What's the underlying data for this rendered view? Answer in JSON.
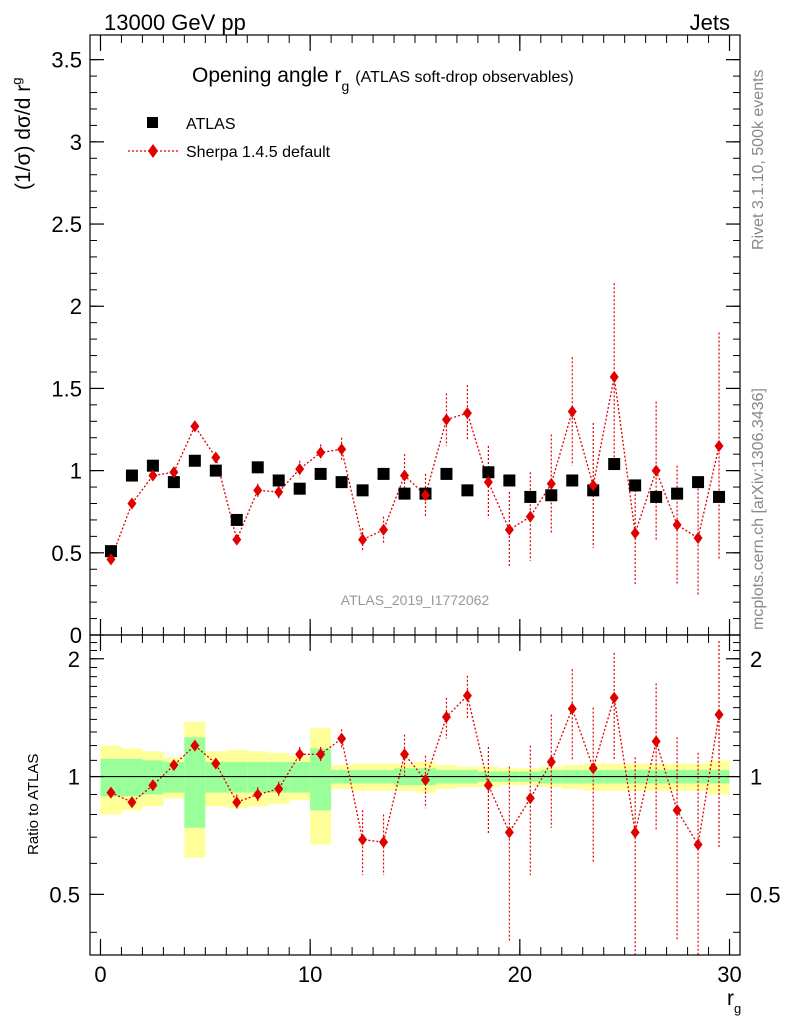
{
  "header": {
    "left": "13000 GeV pp",
    "right": "Jets"
  },
  "side_text": {
    "rivet": "Rivet 3.1.10,  500k events",
    "mcplots": "mcplots.cern.ch [arXiv:1306.3436]"
  },
  "watermark": "ATLAS_2019_I1772062",
  "chart_data": {
    "type": "scatter",
    "title": "Opening angle r",
    "title_sub": "g",
    "title_suffix": "(ATLAS soft-drop observables)",
    "ylabel": "(1/σ) dσ/d r",
    "ylabel_sub": "g",
    "ratio_ylabel": "Ratio to ATLAS",
    "xlabel": "r",
    "xlabel_sub": "g",
    "xlim": [
      -0.5,
      30.5
    ],
    "ylim": [
      0,
      3.65
    ],
    "ratio_ylim": [
      0.35,
      2.3
    ],
    "xticks": [
      "0",
      "10",
      "20",
      "30"
    ],
    "yticks": [
      "0",
      "0.5",
      "1",
      "1.5",
      "2",
      "2.5",
      "3",
      "3.5"
    ],
    "ratio_yticks": [
      "0.5",
      "1",
      "2"
    ],
    "legend_position": "top-left",
    "x": [
      0.5,
      1.5,
      2.5,
      3.5,
      4.5,
      5.5,
      6.5,
      7.5,
      8.5,
      9.5,
      10.5,
      11.5,
      12.5,
      13.5,
      14.5,
      15.5,
      16.5,
      17.5,
      18.5,
      19.5,
      20.5,
      21.5,
      22.5,
      23.5,
      24.5,
      25.5,
      26.5,
      27.5,
      28.5,
      29.5
    ],
    "series": [
      {
        "name": "ATLAS",
        "color": "#000000",
        "marker": "square",
        "values": [
          0.51,
          0.97,
          1.03,
          0.93,
          1.06,
          1.0,
          0.7,
          1.02,
          0.94,
          0.89,
          0.98,
          0.93,
          0.88,
          0.98,
          0.86,
          0.86,
          0.98,
          0.88,
          0.99,
          0.94,
          0.84,
          0.85,
          0.94,
          0.88,
          1.04,
          0.91,
          0.84,
          0.86,
          0.93,
          0.84
        ],
        "band_inner": [
          0.11,
          0.11,
          0.1,
          0.09,
          0.26,
          0.09,
          0.09,
          0.09,
          0.09,
          0.09,
          0.18,
          0.04,
          0.04,
          0.04,
          0.05,
          0.05,
          0.04,
          0.04,
          0.03,
          0.03,
          0.03,
          0.04,
          0.04,
          0.04,
          0.04,
          0.04,
          0.04,
          0.04,
          0.04,
          0.04
        ],
        "band_outer": [
          0.2,
          0.18,
          0.16,
          0.12,
          0.38,
          0.16,
          0.17,
          0.16,
          0.15,
          0.13,
          0.33,
          0.07,
          0.08,
          0.08,
          0.08,
          0.09,
          0.07,
          0.06,
          0.06,
          0.05,
          0.05,
          0.06,
          0.07,
          0.08,
          0.08,
          0.08,
          0.08,
          0.08,
          0.08,
          0.1
        ]
      },
      {
        "name": "Sherpa 1.4.5 default",
        "color": "#e00000",
        "marker": "diamond",
        "values": [
          0.46,
          0.8,
          0.97,
          0.99,
          1.27,
          1.08,
          0.58,
          0.88,
          0.87,
          1.01,
          1.11,
          1.13,
          0.58,
          0.64,
          0.97,
          0.85,
          1.31,
          1.35,
          0.93,
          0.64,
          0.72,
          0.92,
          1.36,
          0.91,
          1.57,
          0.62,
          1.0,
          0.67,
          0.59,
          1.15
        ],
        "errors": [
          0.01,
          0.01,
          0.02,
          0.02,
          0.03,
          0.03,
          0.03,
          0.04,
          0.04,
          0.05,
          0.05,
          0.07,
          0.07,
          0.08,
          0.13,
          0.13,
          0.16,
          0.17,
          0.22,
          0.23,
          0.27,
          0.3,
          0.33,
          0.38,
          0.57,
          0.31,
          0.42,
          0.36,
          0.35,
          0.69
        ],
        "ratio": [
          0.91,
          0.86,
          0.95,
          1.07,
          1.2,
          1.08,
          0.86,
          0.9,
          0.93,
          1.14,
          1.14,
          1.25,
          0.69,
          0.68,
          1.14,
          0.98,
          1.42,
          1.61,
          0.95,
          0.72,
          0.88,
          1.09,
          1.49,
          1.05,
          1.59,
          0.72,
          1.23,
          0.82,
          0.67,
          1.44
        ],
        "ratio_errors": [
          0.02,
          0.02,
          0.02,
          0.02,
          0.03,
          0.03,
          0.04,
          0.04,
          0.04,
          0.05,
          0.05,
          0.07,
          0.13,
          0.12,
          0.14,
          0.15,
          0.17,
          0.2,
          0.24,
          0.34,
          0.32,
          0.35,
          0.39,
          0.45,
          0.48,
          0.4,
          0.5,
          0.44,
          0.48,
          0.78
        ]
      }
    ]
  }
}
